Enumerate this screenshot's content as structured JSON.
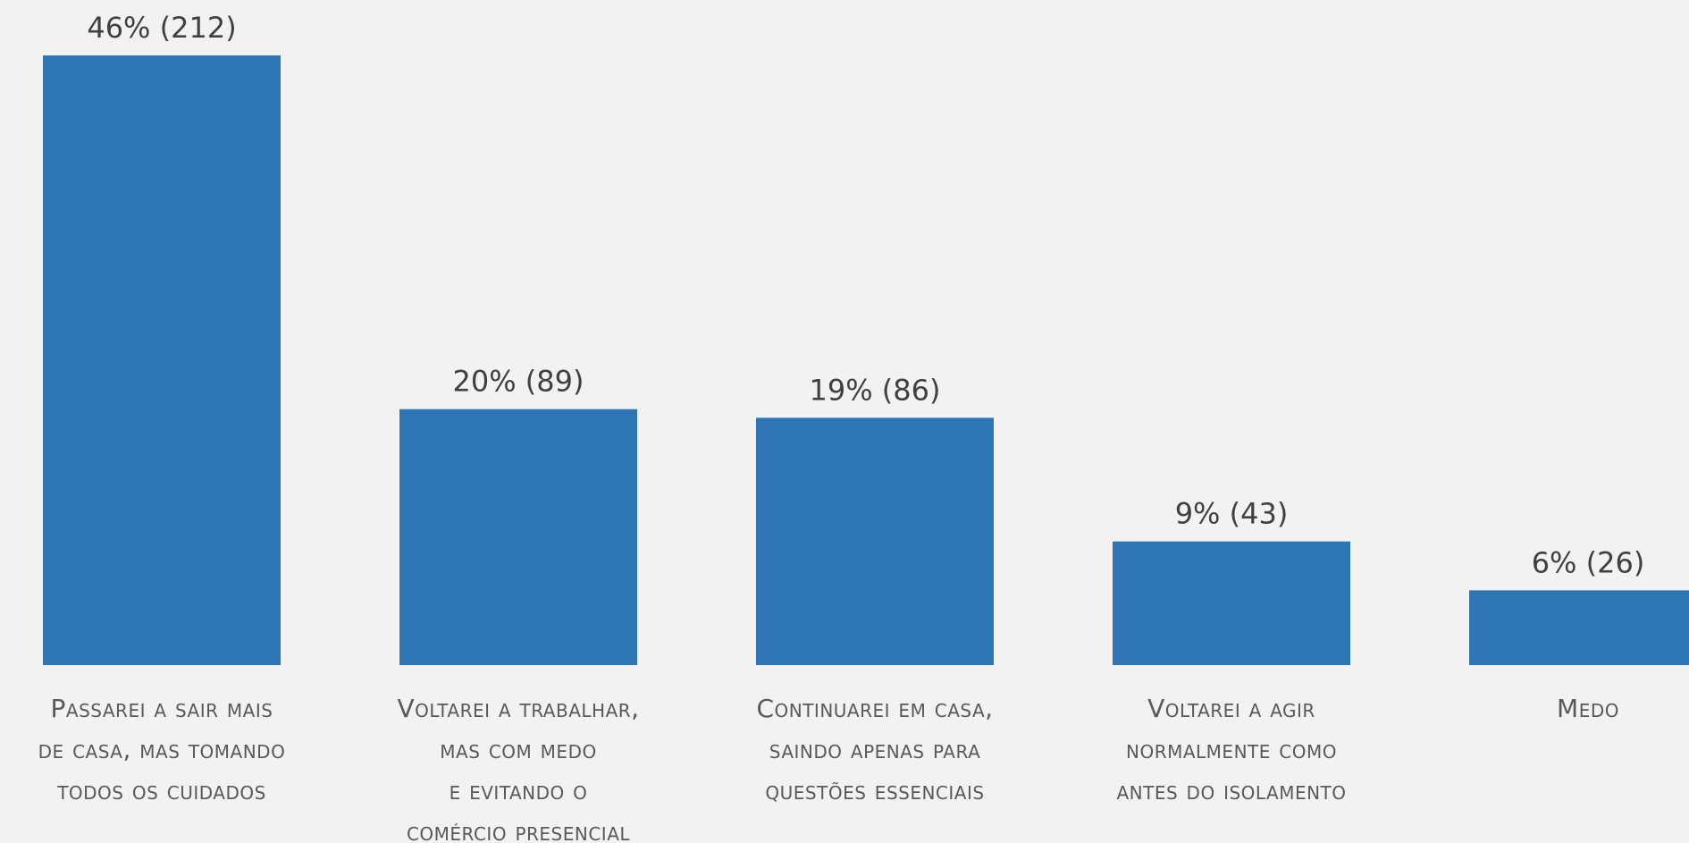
{
  "chart_data": {
    "type": "bar",
    "categories": [
      [
        "Passarei a sair mais",
        "de casa, mas tomando",
        "todos os cuidados"
      ],
      [
        "Voltarei a trabalhar,",
        "mas com medo",
        "e evitando o",
        "comércio presencial"
      ],
      [
        "Continuarei em casa,",
        "saindo apenas para",
        "questões essenciais"
      ],
      [
        "Voltarei a agir",
        "normalmente como",
        "antes do isolamento"
      ],
      [
        "Medo"
      ]
    ],
    "values": [
      212,
      89,
      86,
      43,
      26
    ],
    "value_labels": [
      "46% (212)",
      "20% (89)",
      "19% (86)",
      "9% (43)",
      "6% (26)"
    ],
    "color": "#2e75b6"
  }
}
